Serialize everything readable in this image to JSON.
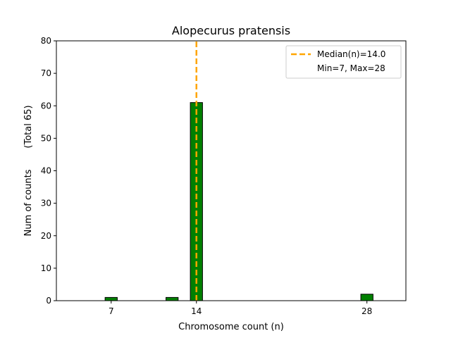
{
  "chart_data": {
    "type": "bar",
    "title": "Alopecurus pratensis",
    "xlabel": "Chromosome count (n)",
    "ylabel": "Num of counts",
    "ylabel_extra": "(Total 65)",
    "xlim": [
      2.5,
      31.2
    ],
    "ylim": [
      0,
      80
    ],
    "xticks": [
      7,
      14,
      28
    ],
    "yticks": [
      0,
      10,
      20,
      30,
      40,
      50,
      60,
      70,
      80
    ],
    "bar_width": 1.0,
    "x": [
      7,
      12,
      14,
      28
    ],
    "values": [
      1,
      1,
      61,
      2
    ],
    "bar_color": "#008000",
    "bar_edge_color": "#000000",
    "median": 14.0,
    "median_color": "#ffa500",
    "legend": {
      "location": "top-right",
      "entries": [
        "Median(n)=14.0",
        "Min=7, Max=28"
      ]
    }
  }
}
